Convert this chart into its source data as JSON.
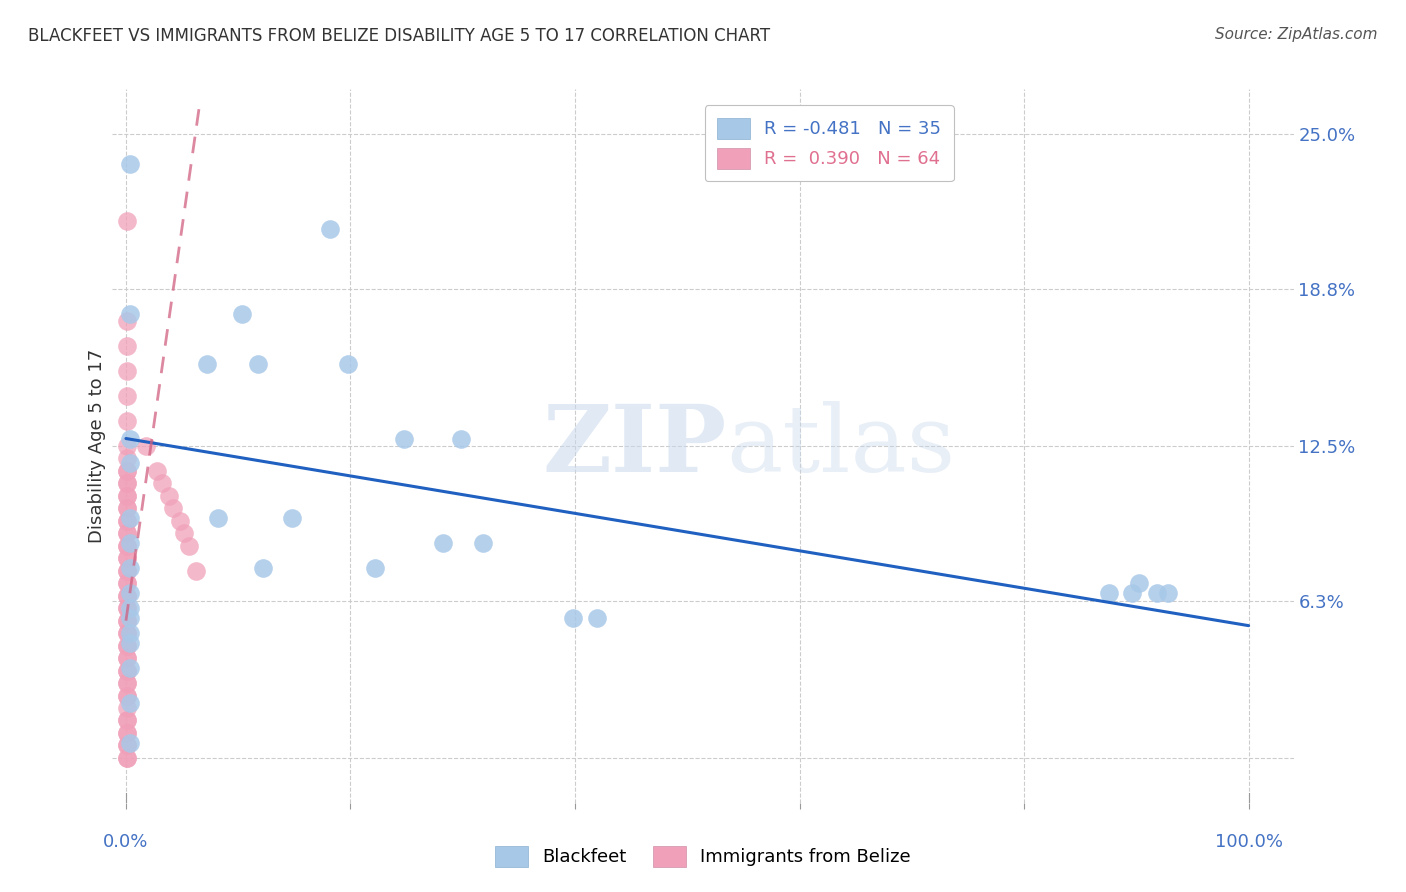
{
  "title": "BLACKFEET VS IMMIGRANTS FROM BELIZE DISABILITY AGE 5 TO 17 CORRELATION CHART",
  "source": "Source: ZipAtlas.com",
  "ylabel": "Disability Age 5 to 17",
  "legend_blue_r": "-0.481",
  "legend_blue_n": "35",
  "legend_pink_r": "0.390",
  "legend_pink_n": "64",
  "watermark": "ZIPatlas",
  "blue_color": "#a8c8e8",
  "pink_color": "#f0a0b8",
  "blue_line_color": "#2060c0",
  "pink_line_color": "#d06080",
  "ytick_vals": [
    0.0,
    0.063,
    0.125,
    0.188,
    0.25
  ],
  "ytick_labels": [
    "",
    "6.3%",
    "12.5%",
    "18.8%",
    "25.0%"
  ],
  "xtick_vals": [
    0.0,
    0.2,
    0.4,
    0.6,
    0.8,
    1.0
  ],
  "xlim": [
    -0.012,
    1.04
  ],
  "ylim": [
    -0.018,
    0.268
  ],
  "blue_line_x": [
    0.0,
    1.0
  ],
  "blue_line_y": [
    0.128,
    0.053
  ],
  "pink_line_x": [
    0.0,
    0.065
  ],
  "pink_line_y": [
    0.055,
    0.26
  ],
  "blackfeet_x": [
    0.004,
    0.004,
    0.004,
    0.004,
    0.004,
    0.004,
    0.004,
    0.004,
    0.004,
    0.004,
    0.072,
    0.082,
    0.103,
    0.118,
    0.122,
    0.148,
    0.182,
    0.198,
    0.222,
    0.248,
    0.298,
    0.282,
    0.318,
    0.398,
    0.42,
    0.876,
    0.896,
    0.902,
    0.918,
    0.928,
    0.004,
    0.004,
    0.004,
    0.004,
    0.004
  ],
  "blackfeet_y": [
    0.238,
    0.178,
    0.128,
    0.118,
    0.096,
    0.086,
    0.076,
    0.066,
    0.06,
    0.056,
    0.158,
    0.096,
    0.178,
    0.158,
    0.076,
    0.096,
    0.212,
    0.158,
    0.076,
    0.128,
    0.128,
    0.086,
    0.086,
    0.056,
    0.056,
    0.066,
    0.066,
    0.07,
    0.066,
    0.066,
    0.036,
    0.022,
    0.05,
    0.006,
    0.046
  ],
  "belize_x": [
    0.001,
    0.001,
    0.001,
    0.001,
    0.001,
    0.001,
    0.001,
    0.001,
    0.001,
    0.001,
    0.001,
    0.001,
    0.001,
    0.001,
    0.001,
    0.001,
    0.001,
    0.001,
    0.001,
    0.001,
    0.001,
    0.001,
    0.001,
    0.001,
    0.001,
    0.001,
    0.001,
    0.001,
    0.001,
    0.001,
    0.001,
    0.001,
    0.001,
    0.001,
    0.001,
    0.001,
    0.001,
    0.001,
    0.001,
    0.001,
    0.001,
    0.001,
    0.001,
    0.001,
    0.001,
    0.001,
    0.001,
    0.001,
    0.001,
    0.001,
    0.001,
    0.001,
    0.001,
    0.001,
    0.001,
    0.018,
    0.028,
    0.032,
    0.038,
    0.042,
    0.048,
    0.052,
    0.056,
    0.062
  ],
  "belize_y": [
    0.215,
    0.175,
    0.165,
    0.155,
    0.145,
    0.135,
    0.125,
    0.115,
    0.105,
    0.095,
    0.085,
    0.075,
    0.065,
    0.055,
    0.045,
    0.035,
    0.025,
    0.015,
    0.01,
    0.005,
    0.0,
    0.115,
    0.11,
    0.105,
    0.1,
    0.095,
    0.09,
    0.085,
    0.08,
    0.075,
    0.07,
    0.065,
    0.06,
    0.055,
    0.05,
    0.045,
    0.04,
    0.035,
    0.03,
    0.025,
    0.02,
    0.015,
    0.01,
    0.005,
    0.0,
    0.12,
    0.11,
    0.1,
    0.09,
    0.08,
    0.07,
    0.06,
    0.05,
    0.04,
    0.03,
    0.125,
    0.115,
    0.11,
    0.105,
    0.1,
    0.095,
    0.09,
    0.085,
    0.075
  ]
}
